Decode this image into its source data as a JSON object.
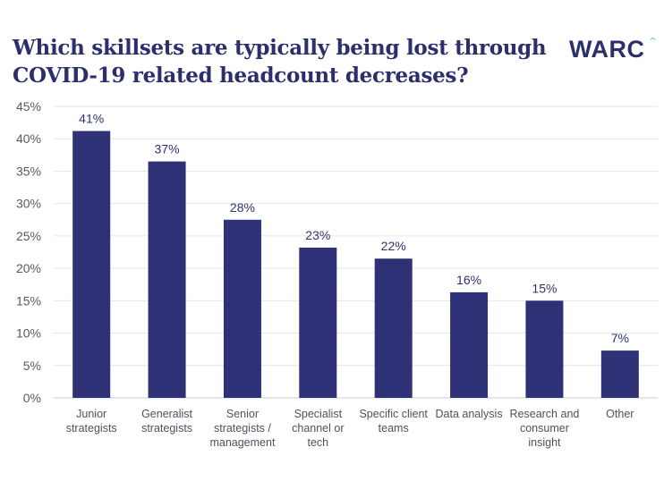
{
  "title": "Which skillsets are typically being lost through COVID-19 related headcount decreases?",
  "brand": {
    "name": "WARC",
    "mark": "^"
  },
  "colors": {
    "bar": "#2e3175",
    "title": "#2b2f6b",
    "grid": "#e4e6ec",
    "accent": "#57c5b6"
  },
  "chart_data": {
    "type": "bar",
    "title": "Which skillsets are typically being lost through COVID-19 related headcount decreases?",
    "categories": [
      [
        "Junior",
        "strategists"
      ],
      [
        "Generalist",
        "strategists"
      ],
      [
        "Senior",
        "strategists /",
        "management"
      ],
      [
        "Specialist",
        "channel or",
        "tech"
      ],
      [
        "Specific client",
        "teams"
      ],
      [
        "Data analysis"
      ],
      [
        "Research and",
        "consumer",
        "insight"
      ],
      [
        "Other"
      ]
    ],
    "values": [
      41,
      37,
      28,
      23,
      22,
      16,
      15,
      7
    ],
    "plotted_values": [
      41.2,
      36.5,
      27.5,
      23.2,
      21.5,
      16.3,
      15.0,
      7.3
    ],
    "data_labels": [
      "41%",
      "37%",
      "28%",
      "23%",
      "22%",
      "16%",
      "15%",
      "7%"
    ],
    "yticks": [
      "0%",
      "5%",
      "10%",
      "15%",
      "20%",
      "25%",
      "30%",
      "35%",
      "40%",
      "45%"
    ],
    "ylim": [
      0,
      45
    ],
    "xlabel": "",
    "ylabel": "",
    "grid": true,
    "legend": "none"
  }
}
